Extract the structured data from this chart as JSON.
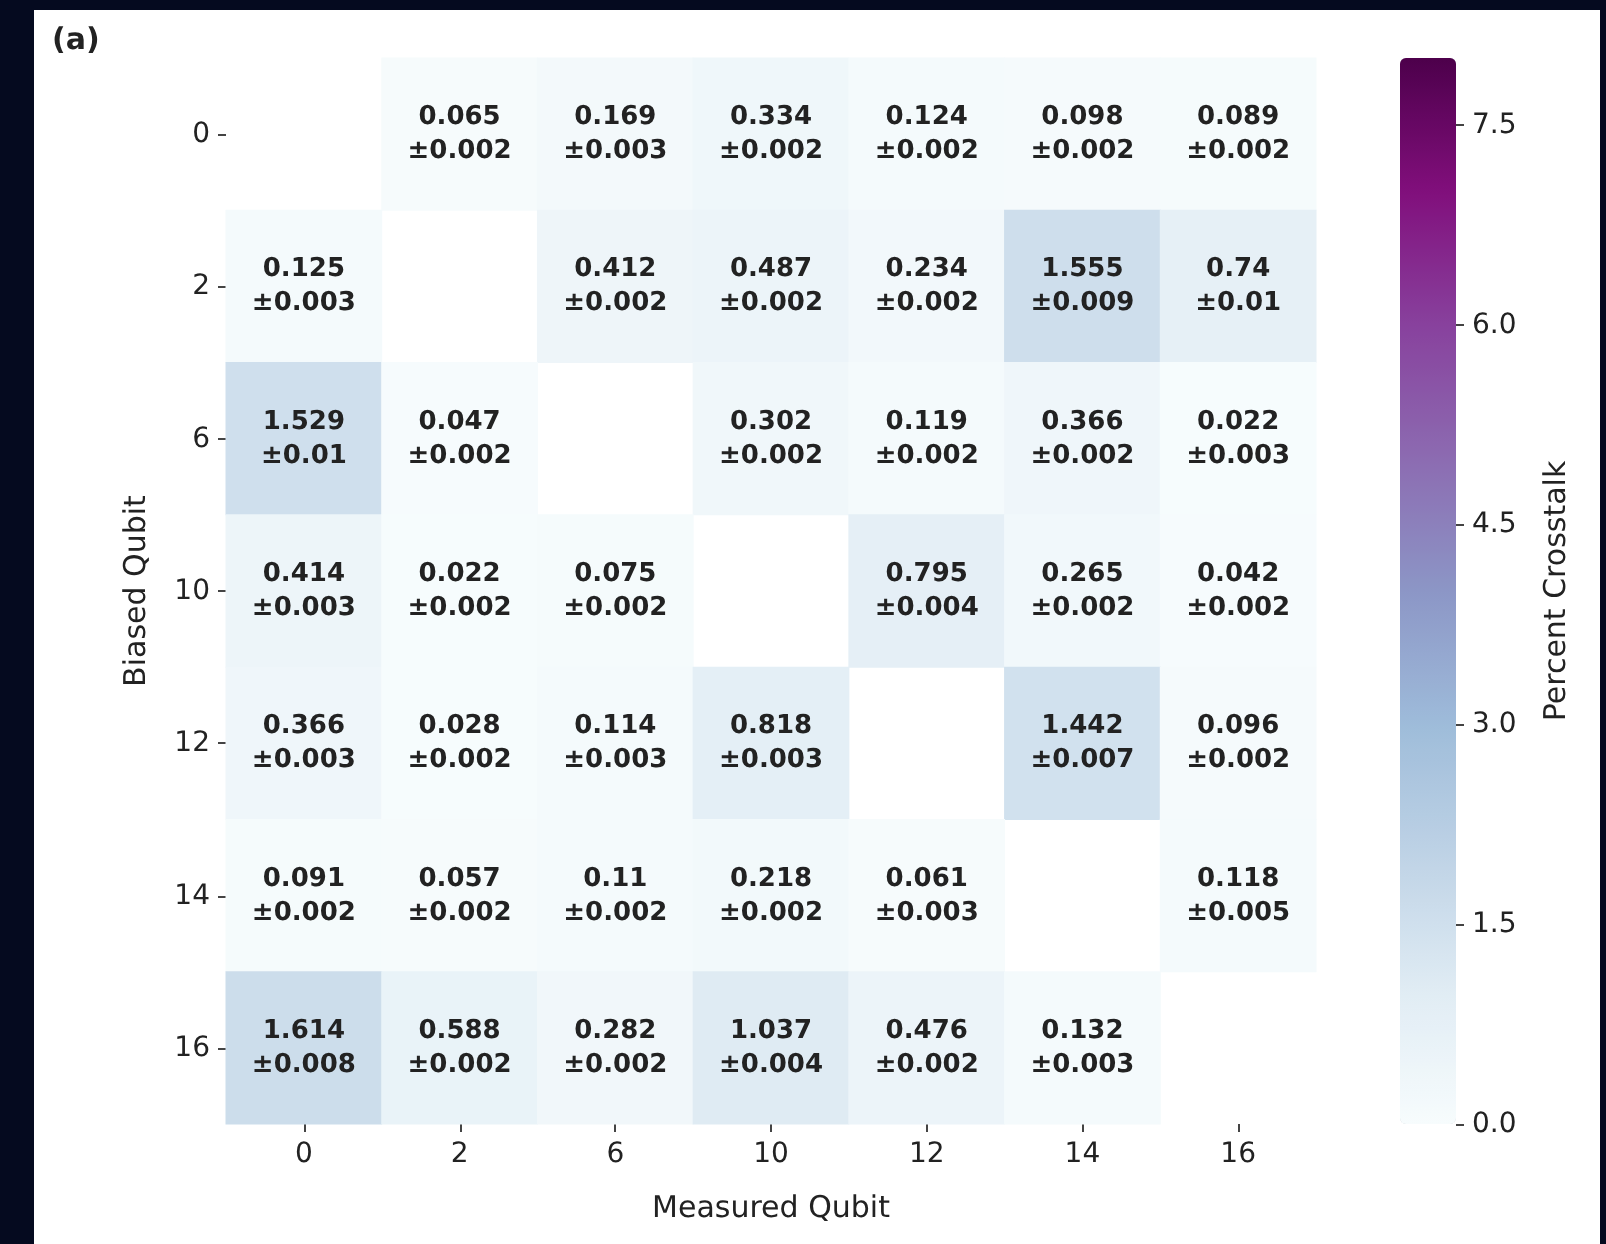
{
  "chart_data": {
    "type": "heatmap",
    "title": "(a)",
    "xlabel": "Measured Qubit",
    "ylabel": "Biased Qubit",
    "clabel": "Percent Crosstalk",
    "categories": [
      "0",
      "2",
      "6",
      "10",
      "12",
      "14",
      "16"
    ],
    "y_categories": [
      "0",
      "2",
      "6",
      "10",
      "12",
      "14",
      "16"
    ],
    "cells": [
      [
        null,
        0.065,
        0.169,
        0.334,
        0.124,
        0.098,
        0.089
      ],
      [
        0.125,
        null,
        0.412,
        0.487,
        0.234,
        1.555,
        0.74
      ],
      [
        1.529,
        0.047,
        null,
        0.302,
        0.119,
        0.366,
        0.022
      ],
      [
        0.414,
        0.022,
        0.075,
        null,
        0.795,
        0.265,
        0.042
      ],
      [
        0.366,
        0.028,
        0.114,
        0.818,
        null,
        1.442,
        0.096
      ],
      [
        0.091,
        0.057,
        0.11,
        0.218,
        0.061,
        null,
        0.118
      ],
      [
        1.614,
        0.588,
        0.282,
        1.037,
        0.476,
        0.132,
        null
      ]
    ],
    "cell_labels": [
      [
        null,
        "0.065\n±0.002",
        "0.169\n±0.003",
        "0.334\n±0.002",
        "0.124\n±0.002",
        "0.098\n±0.002",
        "0.089\n±0.002"
      ],
      [
        "0.125\n±0.003",
        null,
        "0.412\n±0.002",
        "0.487\n±0.002",
        "0.234\n±0.002",
        "1.555\n±0.009",
        "0.74\n±0.01"
      ],
      [
        "1.529\n±0.01",
        "0.047\n±0.002",
        null,
        "0.302\n±0.002",
        "0.119\n±0.002",
        "0.366\n±0.002",
        "0.022\n±0.003"
      ],
      [
        "0.414\n±0.003",
        "0.022\n±0.002",
        "0.075\n±0.002",
        null,
        "0.795\n±0.004",
        "0.265\n±0.002",
        "0.042\n±0.002"
      ],
      [
        "0.366\n±0.003",
        "0.028\n±0.002",
        "0.114\n±0.003",
        "0.818\n±0.003",
        null,
        "1.442\n±0.007",
        "0.096\n±0.002"
      ],
      [
        "0.091\n±0.002",
        "0.057\n±0.002",
        "0.11\n±0.002",
        "0.218\n±0.002",
        "0.061\n±0.003",
        null,
        "0.118\n±0.005"
      ],
      [
        "1.614\n±0.008",
        "0.588\n±0.002",
        "0.282\n±0.002",
        "1.037\n±0.004",
        "0.476\n±0.002",
        "0.132\n±0.003",
        null
      ]
    ],
    "clim": [
      0,
      8
    ],
    "cticks": [
      {
        "value": 0,
        "label": "0.0"
      },
      1.5,
      {
        "value": 3,
        "label": "3.0"
      },
      4.5,
      {
        "value": 6,
        "label": "6.0"
      },
      7.5
    ]
  }
}
